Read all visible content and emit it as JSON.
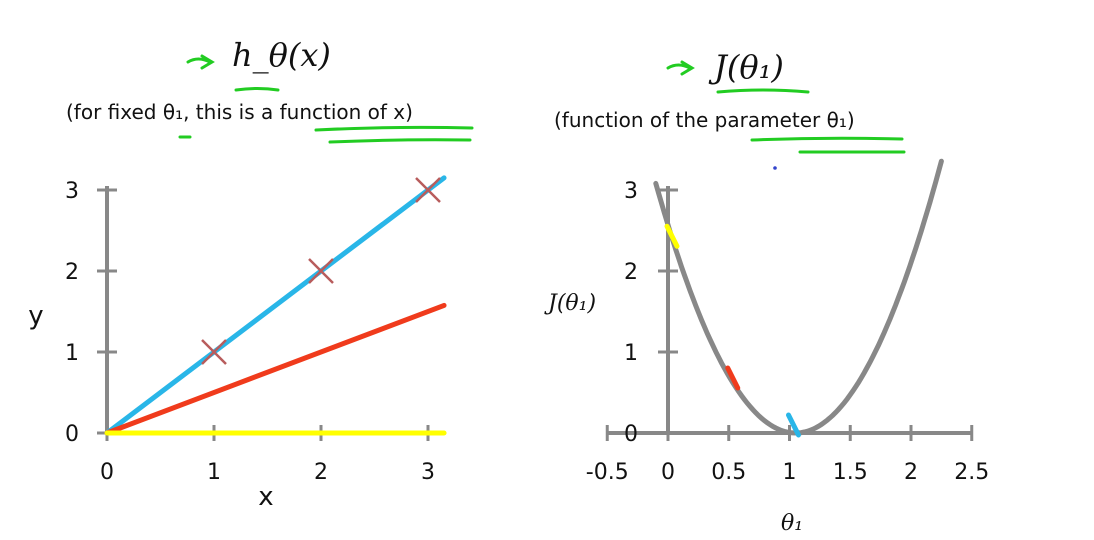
{
  "chart_data": [
    {
      "type": "line",
      "title": "h_θ(x)",
      "subtitle": "(for fixed θ₁, this is a function of x)",
      "xlabel": "x",
      "ylabel": "y",
      "xlim": [
        0,
        3
      ],
      "ylim": [
        0,
        3
      ],
      "x_ticks": [
        "0",
        "1",
        "2",
        "3"
      ],
      "y_ticks": [
        "0",
        "1",
        "2",
        "3"
      ],
      "points": [
        {
          "x": 1,
          "y": 1
        },
        {
          "x": 2,
          "y": 2
        },
        {
          "x": 3,
          "y": 3
        }
      ],
      "series": [
        {
          "color": "#29b6e8",
          "slope": 1
        },
        {
          "color": "#f03b1c",
          "slope": 0.5
        },
        {
          "color": "#ffff00",
          "slope": 0
        }
      ],
      "marker_color": "#b85c5c"
    },
    {
      "type": "line",
      "title": "J(θ₁)",
      "subtitle": "(function of the parameter θ₁)",
      "xlabel": "θ₁",
      "ylabel": "J(θ₁)",
      "xlim": [
        -0.5,
        2.5
      ],
      "ylim": [
        0,
        3
      ],
      "x_ticks": [
        "-0.5",
        "0",
        "0.5",
        "1",
        "1.5",
        "2",
        "2.5"
      ],
      "y_ticks": [
        "0",
        "1",
        "2",
        "3"
      ],
      "curve": {
        "color": "#888888",
        "x_range": [
          -0.1,
          2.25
        ],
        "formula": "2.33*(theta-1)^2"
      },
      "highlighted_points": [
        {
          "x": 0,
          "y": 2.33,
          "color": "#ffff00"
        },
        {
          "x": 0.5,
          "y": 0.58,
          "color": "#f03b1c"
        },
        {
          "x": 1,
          "y": 0,
          "color": "#29b6e8"
        }
      ]
    }
  ],
  "annotations": {
    "highlight_color": "#22cc22"
  }
}
